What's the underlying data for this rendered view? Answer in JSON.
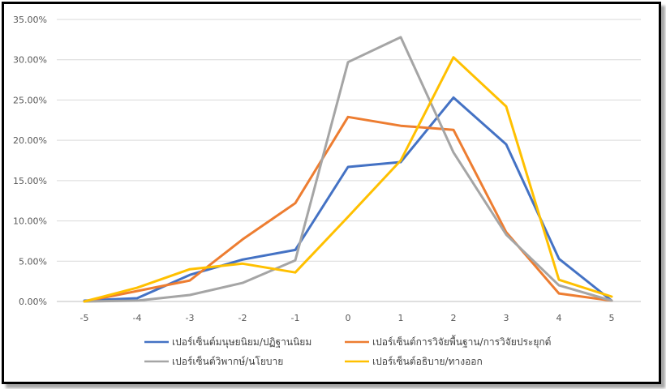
{
  "chart_data": {
    "type": "line",
    "title": "",
    "xlabel": "",
    "ylabel": "",
    "x": [
      -5,
      -4,
      -3,
      -2,
      -1,
      0,
      1,
      2,
      3,
      4,
      5
    ],
    "x_tick_labels": [
      "-5",
      "-4",
      "-3",
      "-2",
      "-1",
      "0",
      "1",
      "2",
      "3",
      "4",
      "5"
    ],
    "ylim": [
      0,
      35
    ],
    "y_ticks": [
      0,
      5,
      10,
      15,
      20,
      25,
      30,
      35
    ],
    "y_tick_labels": [
      "0.00%",
      "5.00%",
      "10.00%",
      "15.00%",
      "20.00%",
      "25.00%",
      "30.00%",
      "35.00%"
    ],
    "grid": true,
    "legend_position": "bottom",
    "series": [
      {
        "name": "เปอร์เซ็นต์มนุษยนิยม/ปฏิฐานนิยม",
        "color": "#4472C4",
        "values": [
          0.1,
          0.4,
          3.3,
          5.2,
          6.4,
          16.7,
          17.3,
          25.3,
          19.5,
          5.3,
          0.1
        ]
      },
      {
        "name": "เปอร์เซ็นต์การวิจัยพื้นฐาน/การวิจัยประยุกต์",
        "color": "#ED7D31",
        "values": [
          0.0,
          1.3,
          2.6,
          7.7,
          12.2,
          22.9,
          21.8,
          21.3,
          8.6,
          1.0,
          0.1
        ]
      },
      {
        "name": "เปอร์เซ็นต์วิพากษ์/นโยบาย",
        "color": "#A5A5A5",
        "values": [
          0.0,
          0.1,
          0.8,
          2.3,
          5.1,
          29.7,
          32.8,
          18.5,
          8.3,
          2.0,
          0.1
        ]
      },
      {
        "name": "เปอร์เซ็นต์อธิบาย/ทางออก",
        "color": "#FFC000",
        "values": [
          0.0,
          1.7,
          4.0,
          4.7,
          3.6,
          10.5,
          17.5,
          30.3,
          24.2,
          2.7,
          0.6
        ]
      }
    ]
  }
}
